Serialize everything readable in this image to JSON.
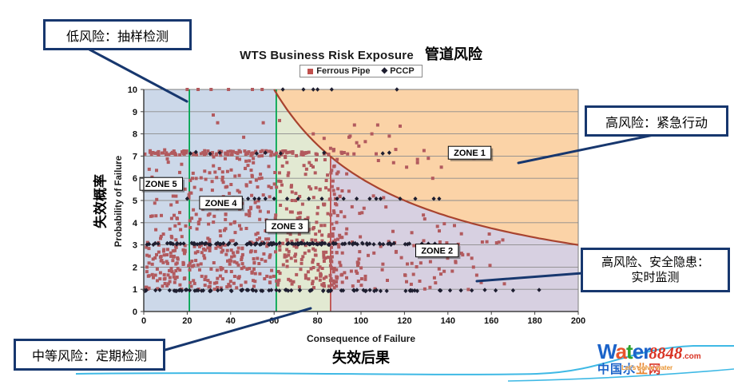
{
  "chart": {
    "title_en": "WTS Business Risk Exposure",
    "title_cn": "管道风险",
    "legend": [
      {
        "label": "Ferrous Pipe",
        "marker": "square",
        "color": "#c0504d"
      },
      {
        "label": "PCCP",
        "marker": "diamond",
        "color": "#1e1e30"
      }
    ],
    "xlabel_en": "Consequence of Failure",
    "xlabel_cn": "失效后果",
    "ylabel_en": "Probability of Failure",
    "ylabel_cn": "失效概率"
  },
  "chart_data": {
    "type": "scatter",
    "xlim": [
      0,
      200
    ],
    "ylim": [
      0,
      10
    ],
    "xticks": [
      0,
      20,
      40,
      60,
      80,
      100,
      120,
      140,
      160,
      180,
      200
    ],
    "yticks": [
      0,
      1,
      2,
      3,
      4,
      5,
      6,
      7,
      8,
      9,
      10
    ],
    "grid": "horizontal",
    "gridline_color": "#8c8c8c",
    "risk_curve": {
      "equation": "y = k / x",
      "k": 600,
      "x_start": 60,
      "x_end": 200,
      "color": "#a8432f"
    },
    "threshold_lines": [
      {
        "x": 21,
        "color": "#00a651",
        "y_top": 10
      },
      {
        "x": 61,
        "color": "#00a651",
        "y_top": 10
      },
      {
        "x": 86,
        "color": "#c0504d",
        "y_top": 6.98
      }
    ],
    "regions": [
      {
        "zone": "blue-low",
        "x0": 0,
        "x1": 61,
        "color": "#ccd8e9"
      },
      {
        "zone": "green-medium",
        "x0": 61,
        "x1": 86,
        "color": "#e2e9d2"
      },
      {
        "zone": "purple-monitor",
        "x0": 86,
        "x1": 200,
        "color": "#d7d0e1"
      },
      {
        "zone": "orange-above-curve",
        "color": "#fbd3a7"
      }
    ],
    "zone_labels": [
      {
        "text": "ZONE 1",
        "x": 150,
        "y": 7.15
      },
      {
        "text": "ZONE 2",
        "x": 135,
        "y": 2.75
      },
      {
        "text": "ZONE 3",
        "x": 66,
        "y": 3.85
      },
      {
        "text": "ZONE 4",
        "x": 35.5,
        "y": 4.9
      },
      {
        "text": "ZONE 5",
        "x": 8,
        "y": 5.75
      }
    ],
    "series": [
      {
        "name": "Ferrous Pipe",
        "marker": "square",
        "color": "#b25a5e",
        "size": 4,
        "generated_clusters": [
          {
            "seed": 11,
            "n": 640,
            "x_min": 1,
            "x_max": 92,
            "columns": 48,
            "y_min": 1.0,
            "y_max": 7.3,
            "low_share": 0.55,
            "low_y_max": 3.3
          },
          {
            "seed": 12,
            "n": 100,
            "x_min": 0,
            "x_max": 97,
            "y_min": 7.05,
            "y_max": 7.25
          },
          {
            "seed": 13,
            "n": 130,
            "x_min": 86,
            "x_max": 168,
            "y_min": 0.9,
            "y_max": 7.0,
            "skew": 1.8,
            "below_curve": true
          }
        ],
        "points": [
          [
            20,
            10
          ],
          [
            25,
            10
          ],
          [
            31,
            10
          ],
          [
            39,
            10
          ],
          [
            50,
            10
          ],
          [
            54.5,
            10
          ],
          [
            32,
            8.85
          ],
          [
            34,
            8.5
          ],
          [
            46,
            7.85
          ],
          [
            55,
            8.5
          ],
          [
            62.5,
            8.6
          ],
          [
            78,
            8.0
          ],
          [
            83,
            7.8
          ],
          [
            86,
            7.35
          ],
          [
            87.5,
            7.3
          ],
          [
            89,
            6.85
          ],
          [
            94.5,
            7.85
          ],
          [
            95,
            7.9
          ],
          [
            97,
            8.4
          ],
          [
            98,
            7.6
          ],
          [
            99,
            7.45
          ],
          [
            102,
            7.65
          ],
          [
            105,
            8.0
          ],
          [
            107,
            7.1
          ],
          [
            107.7,
            8.4
          ],
          [
            108,
            6.8
          ],
          [
            113,
            7.9
          ],
          [
            115,
            6.7
          ],
          [
            116,
            7.3
          ],
          [
            118,
            8.35
          ],
          [
            121,
            6.5
          ],
          [
            126,
            6.85
          ],
          [
            126,
            6.7
          ],
          [
            129,
            7.25
          ],
          [
            131,
            6.9
          ],
          [
            133,
            6.0
          ],
          [
            137,
            6.5
          ],
          [
            143,
            7.3
          ],
          [
            152,
            6.9
          ]
        ]
      },
      {
        "name": "PCCP",
        "marker": "diamond",
        "color": "#1e1e30",
        "size": 5.6,
        "generated_bands": [
          {
            "seed": 21,
            "n": 120,
            "x_min": 0,
            "x_max": 125,
            "y": 3.05,
            "jitter": 0.04
          },
          {
            "seed": 22,
            "n": 80,
            "x_min": 0,
            "x_max": 137,
            "y": 0.95,
            "jitter": 0.03
          }
        ],
        "points": [
          [
            64,
            10
          ],
          [
            73.5,
            10
          ],
          [
            78,
            10
          ],
          [
            80,
            10
          ],
          [
            86.5,
            10
          ],
          [
            116.5,
            10
          ],
          [
            21.5,
            7.12
          ],
          [
            24,
            7.18
          ],
          [
            30.5,
            7.1
          ],
          [
            35,
            7.15
          ],
          [
            52,
            7.12
          ],
          [
            56,
            7.15
          ],
          [
            63,
            7.12
          ],
          [
            83,
            7.15
          ],
          [
            110,
            7.12
          ],
          [
            113,
            7.15
          ],
          [
            20,
            5.08
          ],
          [
            45,
            5.08
          ],
          [
            48,
            5.08
          ],
          [
            51,
            5.08
          ],
          [
            53,
            5.08
          ],
          [
            56,
            5.08
          ],
          [
            60,
            5.08
          ],
          [
            66,
            5.08
          ],
          [
            71,
            5.08
          ],
          [
            76,
            5.08
          ],
          [
            82,
            5.08
          ],
          [
            89,
            5.08
          ],
          [
            92,
            5.08
          ],
          [
            98,
            5.08
          ],
          [
            104,
            5.08
          ],
          [
            107,
            5.08
          ],
          [
            109,
            5.08
          ],
          [
            118,
            5.08
          ],
          [
            125,
            5.08
          ],
          [
            133.5,
            5.08
          ],
          [
            136,
            5.08
          ],
          [
            128,
            3.05
          ],
          [
            131,
            3.05
          ],
          [
            134,
            3.05
          ],
          [
            141,
            0.95
          ],
          [
            146,
            0.95
          ],
          [
            151,
            0.95
          ],
          [
            157,
            0.97
          ],
          [
            162,
            0.95
          ],
          [
            170,
            0.95
          ],
          [
            182,
            0.97
          ]
        ]
      }
    ]
  },
  "callouts": {
    "low": {
      "text": "低风险：抽样检测"
    },
    "high_action": {
      "text": "高风险：紧急行动"
    },
    "high_monitor": {
      "line1": "高风险、安全隐患：",
      "line2": "实时监测"
    },
    "medium": {
      "text": "中等风险：定期检测"
    }
  },
  "watermark": {
    "brand": "Water",
    "brand_colors": [
      "#1b63c9",
      "#e8542c",
      "#2ea12e",
      "#1b63c9",
      "#1b63c9"
    ],
    "digits": "8848",
    "tld": ".com",
    "cn": "中国水业网",
    "cn_colors": [
      "#1b63c9",
      "#1b63c9",
      "#1b63c9",
      "#e8822c",
      "#d93425"
    ],
    "slogan": "Let's solve water"
  }
}
